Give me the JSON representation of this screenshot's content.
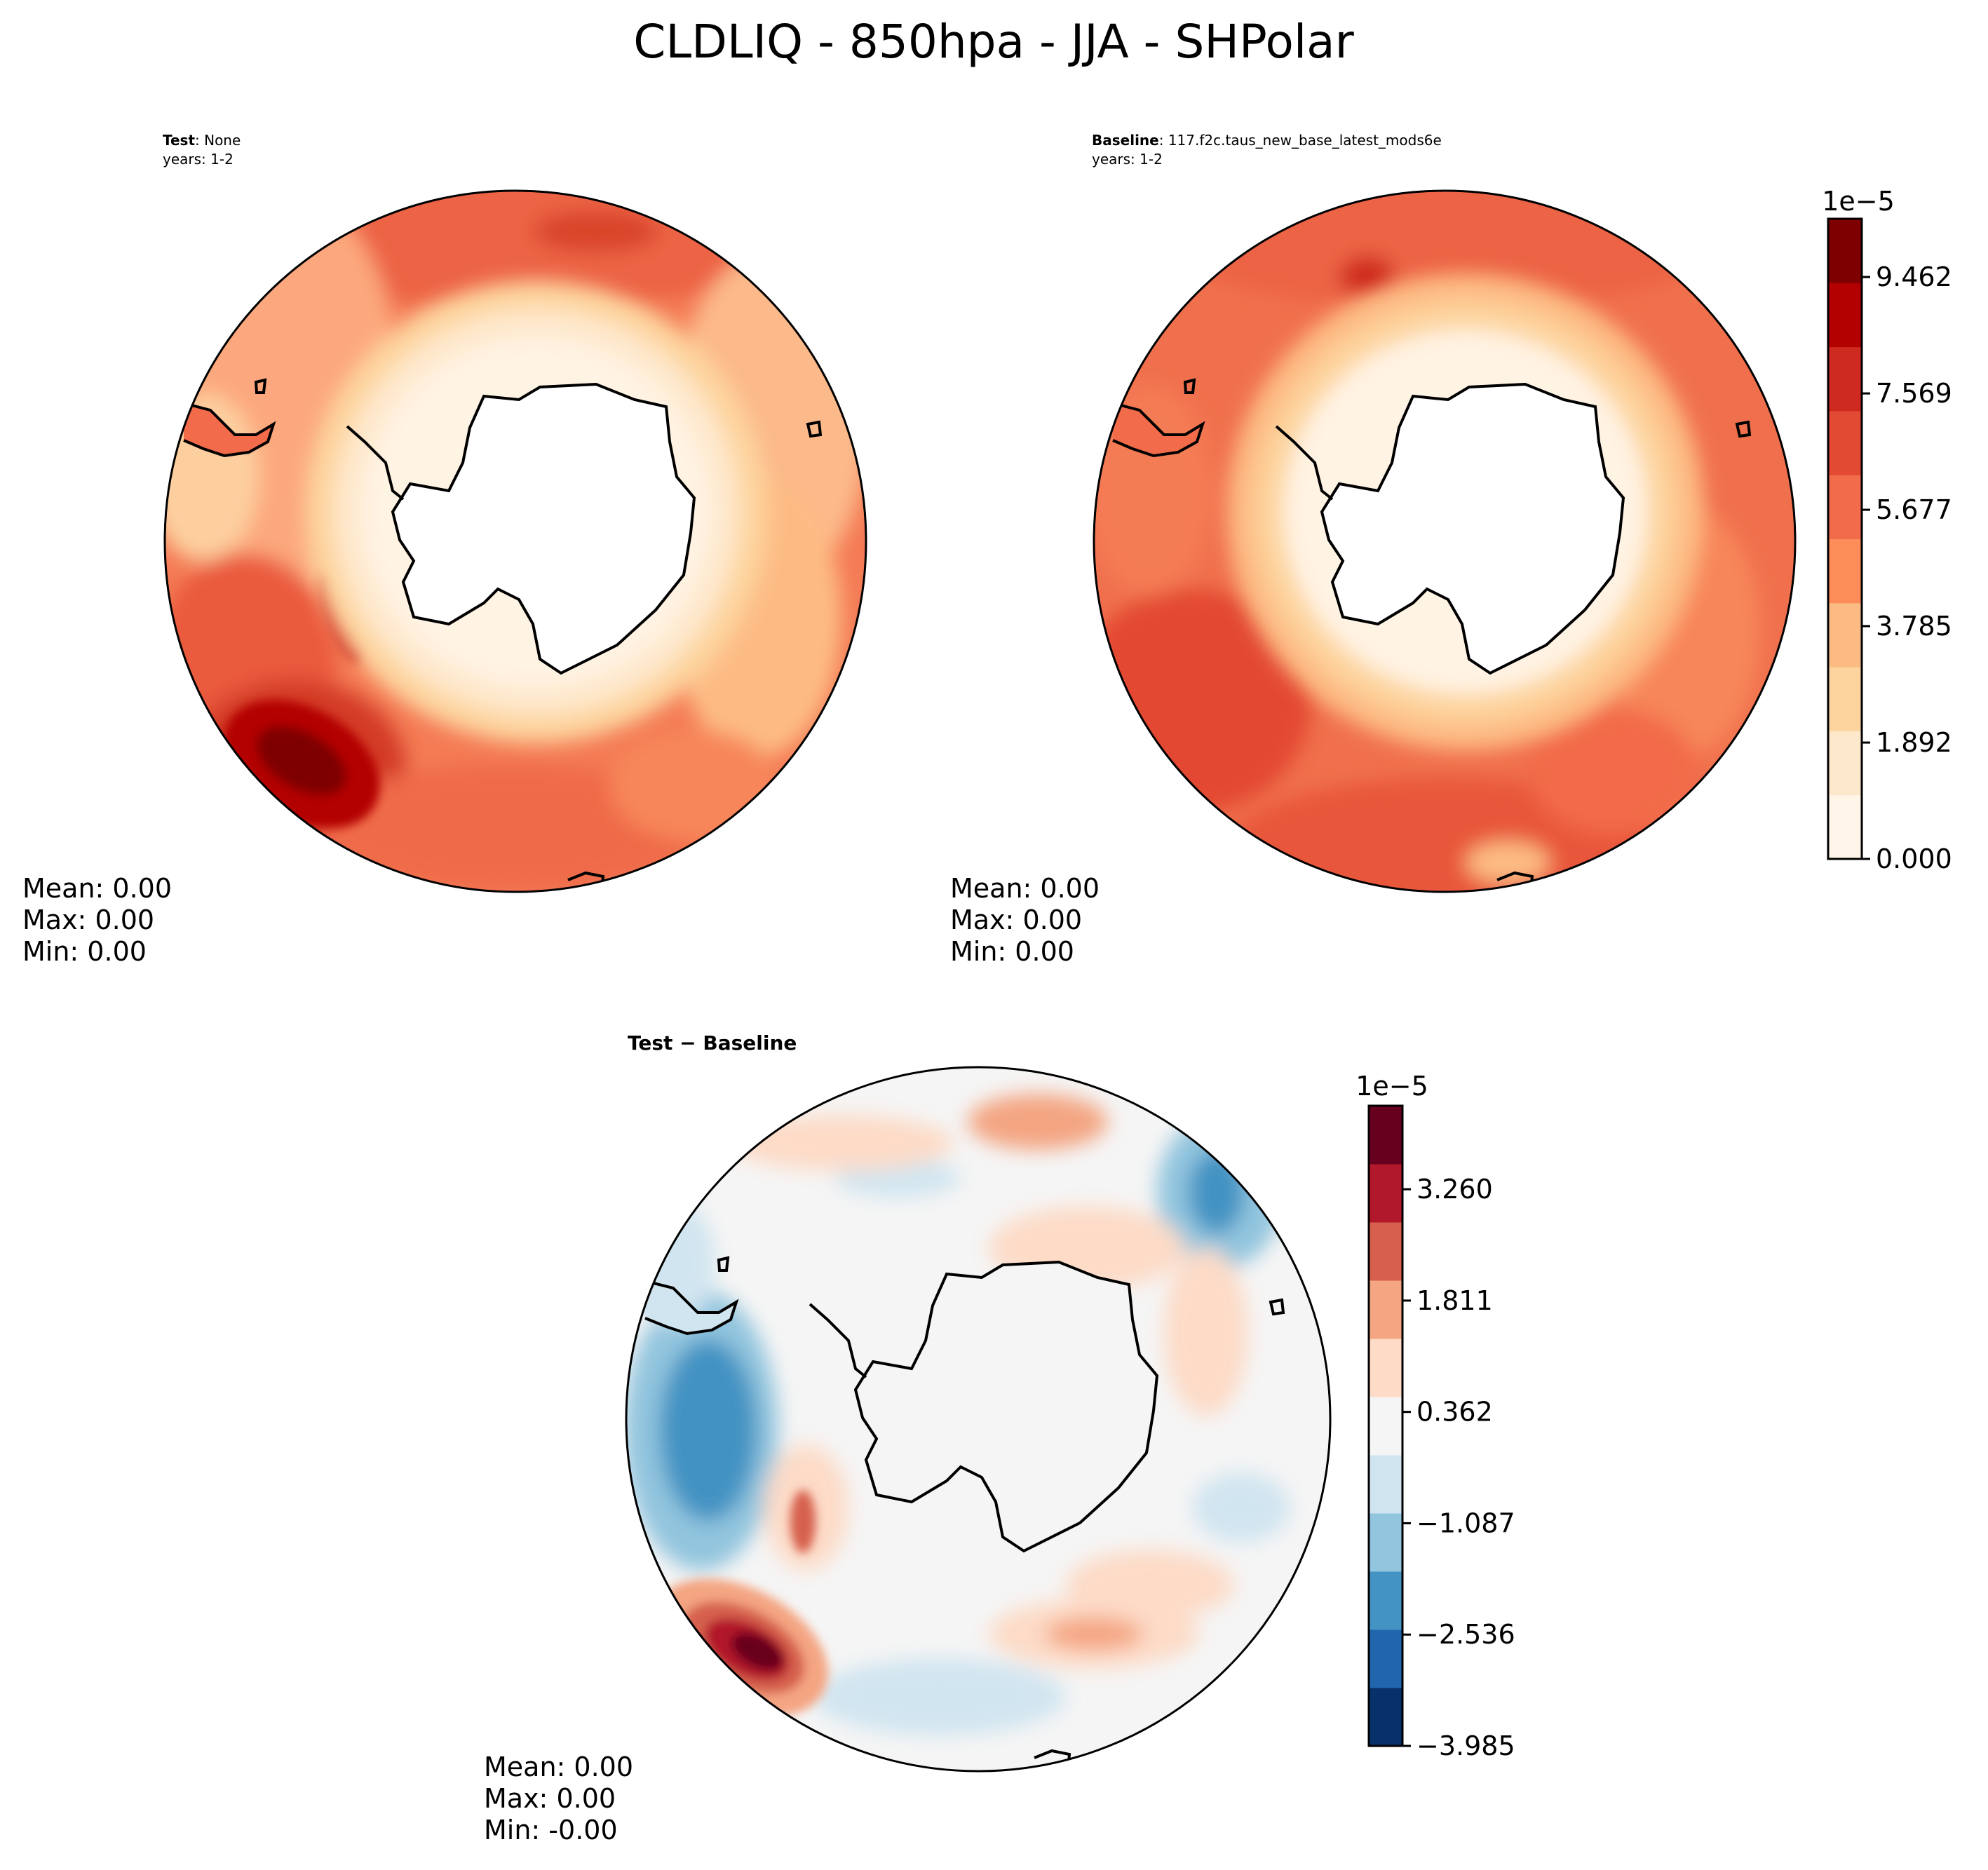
{
  "title": "CLDLIQ - 850hpa - JJA - SHPolar",
  "panels": [
    {
      "id": "test",
      "label_bold": "Test",
      "label_rest": ": None",
      "years": "years: 1-2",
      "stats": {
        "mean": "Mean:  0.00",
        "max": "Max:  0.00",
        "min": "Min:  0.00"
      }
    },
    {
      "id": "baseline",
      "label_bold": "Baseline",
      "label_rest": ": 117.f2c.taus_new_base_latest_mods6e",
      "years": "years: 1-2",
      "stats": {
        "mean": "Mean:  0.00",
        "max": "Max:  0.00",
        "min": "Min:  0.00"
      }
    },
    {
      "id": "diff",
      "label_bold": "Test − Baseline",
      "stats": {
        "mean": "Mean:  0.00",
        "max": "Max:  0.00",
        "min": "Min: -0.00"
      }
    }
  ],
  "chart_data": [
    {
      "type": "heatmap",
      "projection": "south-polar-stereographic",
      "variable": "CLDLIQ",
      "level": "850hpa",
      "season": "JJA",
      "region": "SHPolar",
      "colorbar": {
        "name": "main",
        "scale_label": "1e−5",
        "cmap": "OrRd-like",
        "tick_labels": [
          "9.462",
          "7.569",
          "5.677",
          "3.785",
          "1.892",
          "0.000"
        ],
        "tick_values": [
          9.462,
          7.569,
          5.677,
          3.785,
          1.892,
          0.0
        ],
        "range": [
          0.0,
          10.409
        ],
        "colors": [
          "#fff5e9",
          "#fee8cc",
          "#fdd49e",
          "#fdbb84",
          "#fc8d59",
          "#f26b4a",
          "#e34a33",
          "#cf2a1f",
          "#b30000",
          "#7f0000"
        ]
      }
    },
    {
      "type": "heatmap",
      "projection": "south-polar-stereographic",
      "colorbar": {
        "name": "diff",
        "scale_label": "1e−5",
        "cmap": "RdBu_r",
        "tick_labels": [
          "3.260",
          "1.811",
          "0.362",
          "−1.087",
          "−2.536",
          "−3.985"
        ],
        "tick_values": [
          3.26,
          1.811,
          0.362,
          -1.087,
          -2.536,
          -3.985
        ],
        "range": [
          -3.985,
          4.347
        ],
        "colors": [
          "#08306b",
          "#2166ac",
          "#4393c3",
          "#92c5de",
          "#d1e5f0",
          "#f5f5f5",
          "#fddbc7",
          "#f4a582",
          "#d6604d",
          "#b2182b",
          "#67001f"
        ]
      }
    }
  ]
}
